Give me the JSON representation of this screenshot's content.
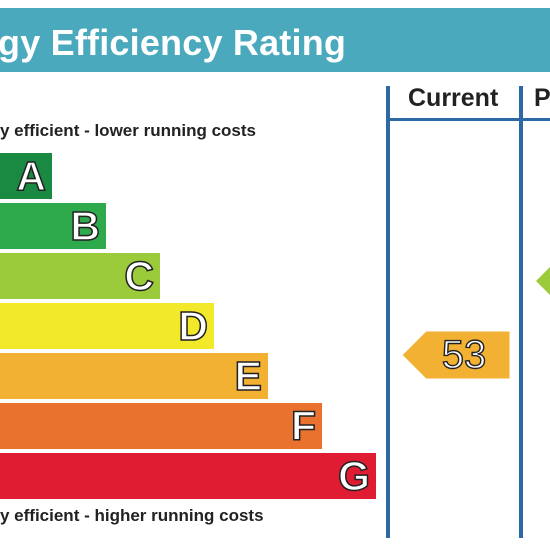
{
  "title": "gy Efficiency Rating",
  "columns": {
    "current": "Current",
    "potential": "P"
  },
  "captions": {
    "top": "y efficient - lower running costs",
    "bottom": "y efficient - higher running costs"
  },
  "bands": [
    {
      "letter": "A",
      "color": "#1a8a43"
    },
    {
      "letter": "B",
      "color": "#2ea94b"
    },
    {
      "letter": "C",
      "color": "#9bcb3b"
    },
    {
      "letter": "D",
      "color": "#f2e92a"
    },
    {
      "letter": "E",
      "color": "#f2b133"
    },
    {
      "letter": "F",
      "color": "#e8722e"
    },
    {
      "letter": "G",
      "color": "#e01c33"
    }
  ],
  "current_rating": {
    "value": "53",
    "band": "E",
    "color": "#f2b133"
  },
  "potential_rating": {
    "value": "",
    "band": "C",
    "color": "#9bcb3b"
  },
  "colors": {
    "title_bar": "#4ba9bd",
    "rules": "#2d6aa5"
  }
}
